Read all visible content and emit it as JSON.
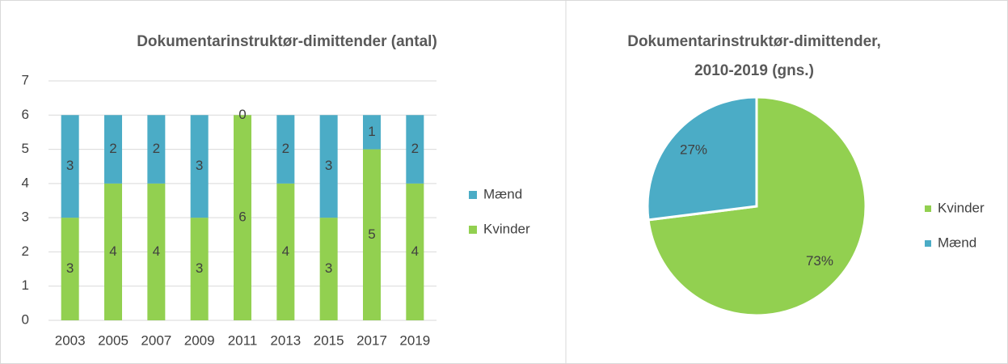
{
  "chart_data": [
    {
      "type": "bar",
      "stacked": true,
      "title": "Dokumentarinstruktør-dimittender (antal)",
      "categories": [
        "2003",
        "2005",
        "2007",
        "2009",
        "2011",
        "2013",
        "2015",
        "2017",
        "2019"
      ],
      "series": [
        {
          "name": "Kvinder",
          "color": "#92d050",
          "values": [
            3,
            4,
            4,
            3,
            6,
            4,
            3,
            5,
            4
          ]
        },
        {
          "name": "Mænd",
          "color": "#4bacc6",
          "values": [
            3,
            2,
            2,
            3,
            0,
            2,
            3,
            1,
            2
          ]
        }
      ],
      "ylim": [
        0,
        7
      ],
      "yticks": [
        0,
        1,
        2,
        3,
        4,
        5,
        6,
        7
      ],
      "grid": true,
      "legend": "right"
    },
    {
      "type": "pie",
      "title": [
        "Dokumentarinstruktør-dimittender,",
        "2010-2019 (gns.)"
      ],
      "categories": [
        "Kvinder",
        "Mænd"
      ],
      "values": [
        73,
        27
      ],
      "value_labels": [
        "73%",
        "27%"
      ],
      "colors": [
        "#92d050",
        "#4bacc6"
      ],
      "legend": "right"
    }
  ]
}
